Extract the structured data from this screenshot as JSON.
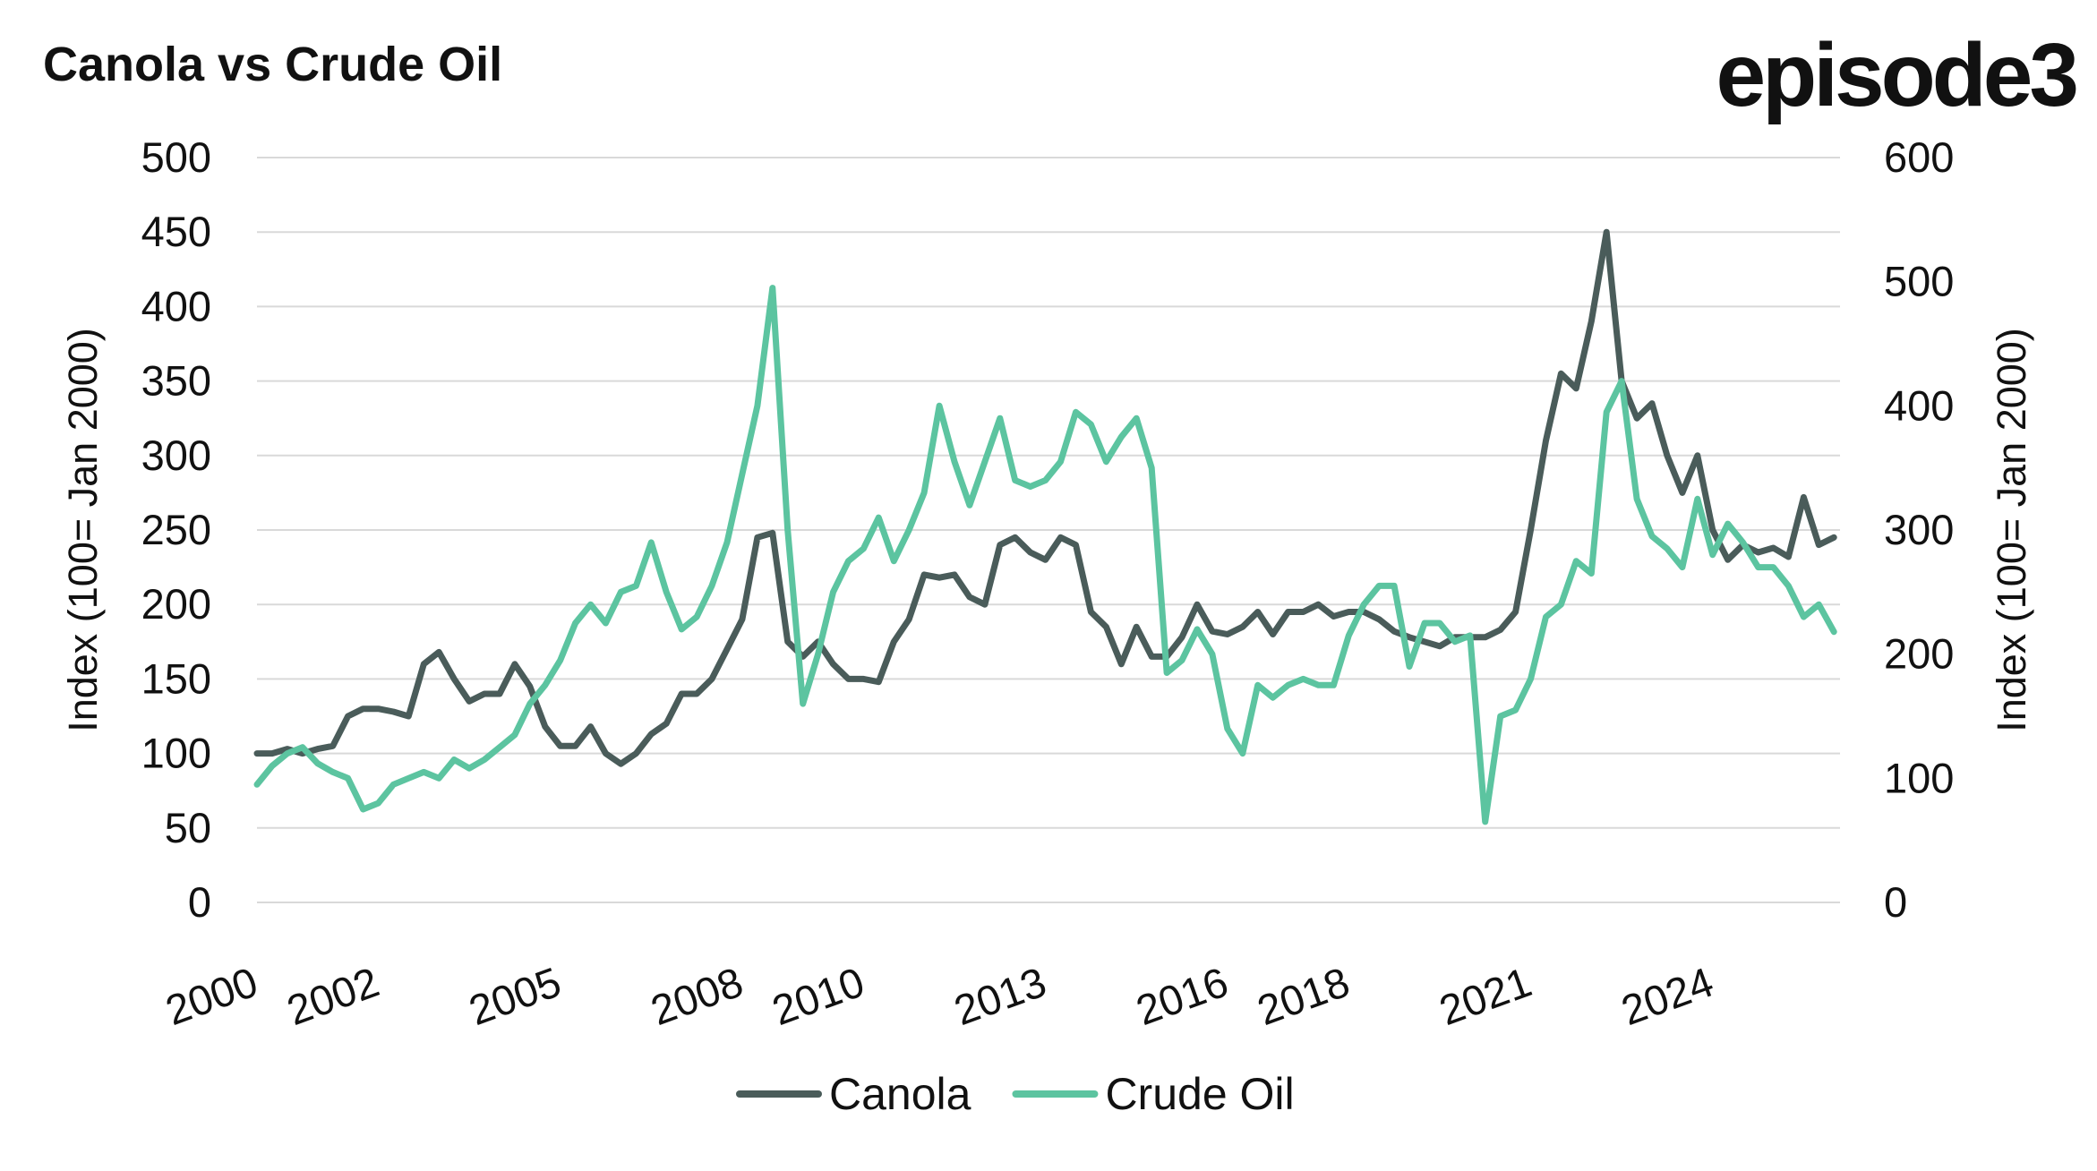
{
  "logo": "episode3",
  "chart_data": {
    "type": "line",
    "title": "Canola vs Crude Oil",
    "y_label": "Index (100= Jan 2000)",
    "y2_label": "Index (100= Jan 2000)",
    "x": [
      2000,
      2000.25,
      2000.5,
      2000.75,
      2001,
      2001.25,
      2001.5,
      2001.75,
      2002,
      2002.25,
      2002.5,
      2002.75,
      2003,
      2003.25,
      2003.5,
      2003.75,
      2004,
      2004.25,
      2004.5,
      2004.75,
      2005,
      2005.25,
      2005.5,
      2005.75,
      2006,
      2006.25,
      2006.5,
      2006.75,
      2007,
      2007.25,
      2007.5,
      2007.75,
      2008,
      2008.25,
      2008.5,
      2008.75,
      2009,
      2009.25,
      2009.5,
      2009.75,
      2010,
      2010.25,
      2010.5,
      2010.75,
      2011,
      2011.25,
      2011.5,
      2011.75,
      2012,
      2012.25,
      2012.5,
      2012.75,
      2013,
      2013.25,
      2013.5,
      2013.75,
      2014,
      2014.25,
      2014.5,
      2014.75,
      2015,
      2015.25,
      2015.5,
      2015.75,
      2016,
      2016.25,
      2016.5,
      2016.75,
      2017,
      2017.25,
      2017.5,
      2017.75,
      2018,
      2018.25,
      2018.5,
      2018.75,
      2019,
      2019.25,
      2019.5,
      2019.75,
      2020,
      2020.25,
      2020.5,
      2020.75,
      2021,
      2021.25,
      2021.5,
      2021.75,
      2022,
      2022.25,
      2022.5,
      2022.75,
      2023,
      2023.25,
      2023.5,
      2023.75,
      2024,
      2024.25,
      2024.5,
      2024.75,
      2025,
      2025.25,
      2025.5,
      2025.75,
      2026
    ],
    "series": [
      {
        "name": "Canola",
        "color": "#4a5c5a",
        "values": [
          100,
          100,
          103,
          100,
          103,
          105,
          125,
          130,
          130,
          128,
          125,
          160,
          168,
          150,
          135,
          140,
          140,
          160,
          145,
          118,
          105,
          105,
          118,
          100,
          93,
          100,
          113,
          120,
          140,
          140,
          150,
          170,
          190,
          245,
          248,
          175,
          165,
          175,
          160,
          150,
          150,
          148,
          175,
          190,
          220,
          218,
          220,
          205,
          200,
          240,
          245,
          235,
          230,
          245,
          240,
          195,
          185,
          160,
          185,
          165,
          165,
          178,
          200,
          182,
          180,
          185,
          195,
          180,
          195,
          195,
          200,
          192,
          195,
          195,
          190,
          182,
          178,
          175,
          172,
          178,
          178,
          178,
          183,
          195,
          250,
          310,
          355,
          345,
          390,
          450,
          350,
          325,
          335,
          300,
          275,
          300,
          250,
          230,
          240,
          235,
          238,
          232,
          272,
          240,
          245
        ]
      },
      {
        "name": "Crude Oil",
        "color": "#5cc4a0",
        "axis": "y2",
        "values": [
          95,
          110,
          120,
          125,
          112,
          105,
          100,
          75,
          80,
          95,
          100,
          105,
          100,
          115,
          108,
          115,
          125,
          135,
          160,
          175,
          195,
          225,
          240,
          225,
          250,
          255,
          290,
          250,
          220,
          230,
          255,
          290,
          345,
          400,
          495,
          300,
          160,
          200,
          250,
          275,
          285,
          310,
          275,
          300,
          330,
          400,
          355,
          320,
          355,
          390,
          340,
          335,
          340,
          355,
          395,
          385,
          355,
          375,
          390,
          350,
          185,
          195,
          220,
          200,
          140,
          120,
          175,
          165,
          175,
          180,
          175,
          175,
          215,
          240,
          255,
          255,
          190,
          225,
          225,
          210,
          215,
          65,
          150,
          155,
          180,
          230,
          240,
          275,
          265,
          395,
          420,
          325,
          295,
          285,
          270,
          325,
          280,
          305,
          290,
          270,
          270,
          255,
          230,
          240,
          218
        ]
      }
    ],
    "xlim": [
      2000,
      2026.1
    ],
    "xticks": [
      2000,
      2002,
      2005,
      2008,
      2010,
      2013,
      2016,
      2018,
      2021,
      2024
    ],
    "ylim": [
      0,
      500
    ],
    "yticks": [
      0,
      50,
      100,
      150,
      200,
      250,
      300,
      350,
      400,
      450,
      500
    ],
    "y2lim": [
      0,
      600
    ],
    "y2ticks": [
      0,
      100,
      200,
      300,
      400,
      500,
      600
    ],
    "grid": true,
    "legend": "bottom"
  }
}
